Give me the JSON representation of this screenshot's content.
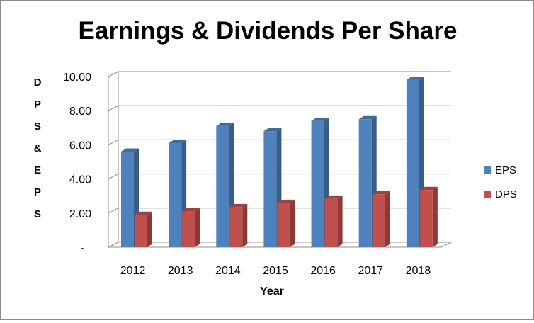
{
  "chart_data": {
    "type": "bar",
    "title": "Earnings & Dividends Per Share",
    "xlabel": "Year",
    "ylabel": "D P S & E P S",
    "categories": [
      "2012",
      "2013",
      "2014",
      "2015",
      "2016",
      "2017",
      "2018"
    ],
    "yticks": [
      "-",
      "2.00",
      "4.00",
      "6.00",
      "8.00",
      "10.00"
    ],
    "ylim": [
      0,
      10
    ],
    "grid": true,
    "legend_position": "right",
    "series": [
      {
        "name": "EPS",
        "color": "#4f81bd",
        "values": [
          5.6,
          6.1,
          7.1,
          6.8,
          7.4,
          7.5,
          9.8
        ]
      },
      {
        "name": "DPS",
        "color": "#c0504d",
        "values": [
          1.9,
          2.1,
          2.35,
          2.6,
          2.85,
          3.1,
          3.35
        ]
      }
    ]
  }
}
